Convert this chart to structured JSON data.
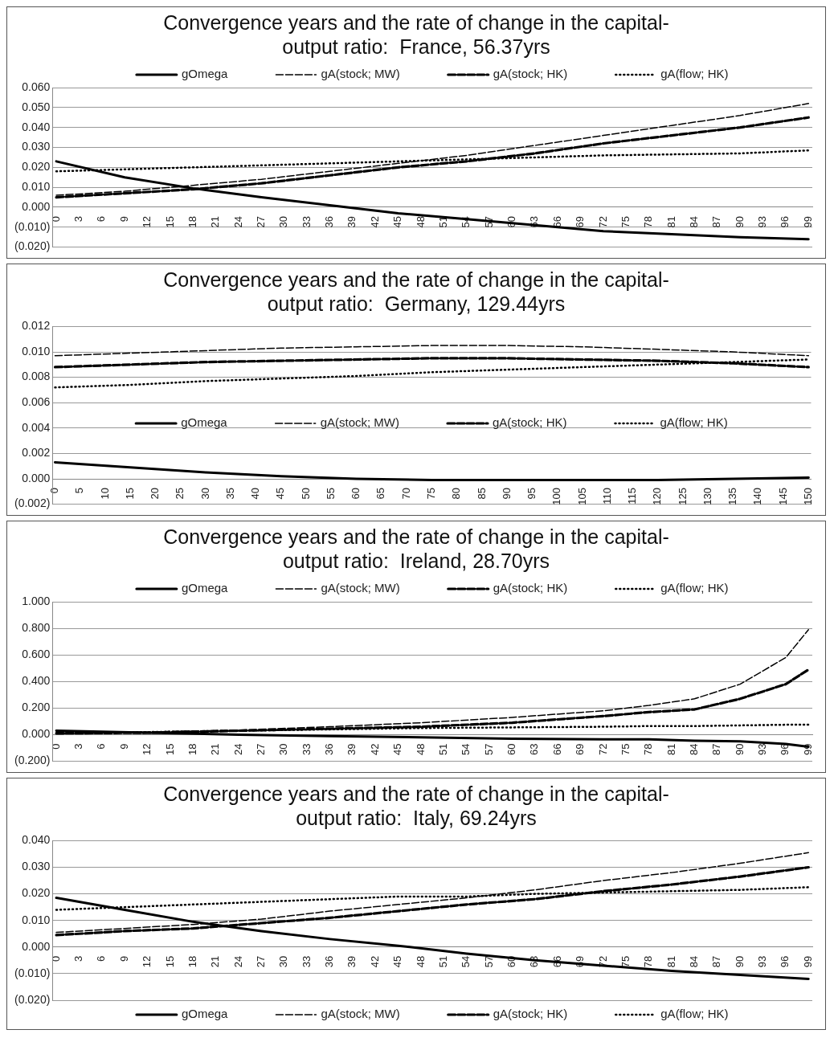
{
  "chart_data": [
    {
      "type": "line",
      "title": "Convergence years and the rate of change in the capital-output ratio:  France, 56.37yrs",
      "xlim": [
        -0.5,
        99.5
      ],
      "xticks": [
        0,
        3,
        6,
        9,
        12,
        15,
        18,
        21,
        24,
        27,
        30,
        33,
        36,
        39,
        42,
        45,
        48,
        51,
        54,
        57,
        60,
        63,
        66,
        69,
        72,
        75,
        78,
        81,
        84,
        87,
        90,
        93,
        96,
        99
      ],
      "ylim": [
        -0.02,
        0.06
      ],
      "yticks": [
        {
          "value": -0.02,
          "label": "(0.020)"
        },
        {
          "value": -0.01,
          "label": "(0.010)"
        },
        {
          "value": 0,
          "label": "0.000"
        },
        {
          "value": 0.01,
          "label": "0.010"
        },
        {
          "value": 0.02,
          "label": "0.020"
        },
        {
          "value": 0.03,
          "label": "0.030"
        },
        {
          "value": 0.04,
          "label": "0.040"
        },
        {
          "value": 0.05,
          "label": "0.050"
        },
        {
          "value": 0.06,
          "label": "0.060"
        }
      ],
      "grid": "y",
      "legend": "top",
      "series": [
        {
          "name": "gOmega",
          "color": "#000000",
          "line_style": "solid",
          "x": [
            0,
            9,
            18,
            27,
            36,
            45,
            54,
            63,
            72,
            81,
            90,
            99
          ],
          "values": [
            0.023,
            0.015,
            0.0095,
            0.005,
            0.001,
            -0.003,
            -0.006,
            -0.009,
            -0.012,
            -0.0135,
            -0.015,
            -0.016
          ]
        },
        {
          "name": "gA(stock; MW)",
          "color": "#000000",
          "line_style": "dashed",
          "x": [
            0,
            9,
            18,
            27,
            36,
            45,
            54,
            63,
            72,
            81,
            90,
            99
          ],
          "values": [
            0.006,
            0.008,
            0.011,
            0.014,
            0.018,
            0.022,
            0.026,
            0.031,
            0.036,
            0.041,
            0.046,
            0.052
          ]
        },
        {
          "name": "gA(stock; HK)",
          "color": "#000000",
          "line_style": "dashed",
          "x": [
            0,
            9,
            18,
            27,
            36,
            45,
            54,
            63,
            72,
            81,
            90,
            99
          ],
          "values": [
            0.005,
            0.007,
            0.009,
            0.012,
            0.016,
            0.02,
            0.023,
            0.027,
            0.032,
            0.036,
            0.04,
            0.045
          ]
        },
        {
          "name": "gA(flow; HK)",
          "color": "#000000",
          "line_style": "dotted",
          "x": [
            0,
            9,
            18,
            27,
            36,
            45,
            54,
            63,
            72,
            81,
            90,
            99
          ],
          "values": [
            0.018,
            0.019,
            0.02,
            0.021,
            0.022,
            0.023,
            0.024,
            0.025,
            0.026,
            0.0265,
            0.027,
            0.0285
          ]
        }
      ]
    },
    {
      "type": "line",
      "title": "Convergence years and the rate of change in the capital-output ratio:  Germany, 129.44yrs",
      "xlim": [
        -0.5,
        150.5
      ],
      "xticks": [
        0,
        5,
        10,
        15,
        20,
        25,
        30,
        35,
        40,
        45,
        50,
        55,
        60,
        65,
        70,
        75,
        80,
        85,
        90,
        95,
        100,
        105,
        110,
        115,
        120,
        125,
        130,
        135,
        140,
        145,
        150
      ],
      "ylim": [
        -0.002,
        0.012
      ],
      "yticks": [
        {
          "value": -0.002,
          "label": "(0.002)"
        },
        {
          "value": 0,
          "label": "0.000"
        },
        {
          "value": 0.002,
          "label": "0.002"
        },
        {
          "value": 0.004,
          "label": "0.004"
        },
        {
          "value": 0.006,
          "label": "0.006"
        },
        {
          "value": 0.008,
          "label": "0.008"
        },
        {
          "value": 0.01,
          "label": "0.010"
        },
        {
          "value": 0.012,
          "label": "0.012"
        }
      ],
      "grid": "y",
      "legend": "center",
      "series": [
        {
          "name": "gOmega",
          "color": "#000000",
          "line_style": "solid",
          "x": [
            0,
            15,
            30,
            45,
            60,
            75,
            90,
            105,
            120,
            135,
            150
          ],
          "values": [
            0.0013,
            0.0009,
            0.0005,
            0.0002,
            0,
            -0.0001,
            -0.0001,
            -0.0001,
            -0.0001,
            0,
            0.0001
          ]
        },
        {
          "name": "gA(stock; MW)",
          "color": "#000000",
          "line_style": "dashed",
          "x": [
            0,
            15,
            30,
            45,
            60,
            75,
            90,
            105,
            120,
            135,
            150
          ],
          "values": [
            0.0097,
            0.0099,
            0.0101,
            0.0103,
            0.0104,
            0.0105,
            0.0105,
            0.0104,
            0.0102,
            0.01,
            0.0097
          ]
        },
        {
          "name": "gA(stock; HK)",
          "color": "#000000",
          "line_style": "dashed",
          "x": [
            0,
            15,
            30,
            45,
            60,
            75,
            90,
            105,
            120,
            135,
            150
          ],
          "values": [
            0.0088,
            0.009,
            0.0092,
            0.0093,
            0.0094,
            0.0095,
            0.0095,
            0.0094,
            0.0093,
            0.0091,
            0.0088
          ]
        },
        {
          "name": "gA(flow; HK)",
          "color": "#000000",
          "line_style": "dotted",
          "x": [
            0,
            15,
            30,
            45,
            60,
            75,
            90,
            105,
            120,
            135,
            150
          ],
          "values": [
            0.0072,
            0.0074,
            0.0077,
            0.0079,
            0.0081,
            0.0084,
            0.0086,
            0.0088,
            0.009,
            0.0092,
            0.0094
          ]
        }
      ]
    },
    {
      "type": "line",
      "title": "Convergence years and the rate of change in the capital-output ratio:  Ireland, 28.70yrs",
      "xlim": [
        -0.5,
        99.5
      ],
      "xticks": [
        0,
        3,
        6,
        9,
        12,
        15,
        18,
        21,
        24,
        27,
        30,
        33,
        36,
        39,
        42,
        45,
        48,
        51,
        54,
        57,
        60,
        63,
        66,
        69,
        72,
        75,
        78,
        81,
        84,
        87,
        90,
        93,
        96,
        99
      ],
      "ylim": [
        -0.2,
        1
      ],
      "yticks": [
        {
          "value": -0.2,
          "label": "(0.200)"
        },
        {
          "value": 0,
          "label": "0.000"
        },
        {
          "value": 0.2,
          "label": "0.200"
        },
        {
          "value": 0.4,
          "label": "0.400"
        },
        {
          "value": 0.6,
          "label": "0.600"
        },
        {
          "value": 0.8,
          "label": "0.800"
        },
        {
          "value": 1,
          "label": "1.000"
        }
      ],
      "grid": "y",
      "legend": "top",
      "series": [
        {
          "name": "gOmega",
          "color": "#000000",
          "line_style": "solid",
          "x": [
            0,
            12,
            24,
            36,
            48,
            60,
            72,
            78,
            84,
            90,
            96,
            99
          ],
          "values": [
            0.03,
            0.015,
            0,
            -0.01,
            -0.02,
            -0.03,
            -0.035,
            -0.035,
            -0.045,
            -0.05,
            -0.07,
            -0.09
          ]
        },
        {
          "name": "gA(stock; MW)",
          "color": "#000000",
          "line_style": "dashed",
          "x": [
            0,
            12,
            24,
            36,
            48,
            60,
            72,
            78,
            84,
            90,
            96,
            99
          ],
          "values": [
            0.02,
            0.02,
            0.035,
            0.06,
            0.09,
            0.13,
            0.18,
            0.22,
            0.27,
            0.38,
            0.58,
            0.79
          ]
        },
        {
          "name": "gA(stock; HK)",
          "color": "#000000",
          "line_style": "dashed",
          "x": [
            0,
            12,
            24,
            36,
            48,
            60,
            72,
            78,
            84,
            90,
            96,
            99
          ],
          "values": [
            0.01,
            0.015,
            0.03,
            0.045,
            0.06,
            0.09,
            0.14,
            0.17,
            0.19,
            0.27,
            0.38,
            0.49
          ]
        },
        {
          "name": "gA(flow; HK)",
          "color": "#000000",
          "line_style": "dotted",
          "x": [
            0,
            12,
            24,
            36,
            48,
            60,
            72,
            78,
            84,
            90,
            96,
            99
          ],
          "values": [
            0.01,
            0.02,
            0.03,
            0.04,
            0.05,
            0.055,
            0.06,
            0.065,
            0.065,
            0.07,
            0.075,
            0.075
          ]
        }
      ]
    },
    {
      "type": "line",
      "title": "Convergence years and the rate of change in the capital-output ratio:  Italy, 69.24yrs",
      "xlim": [
        -0.5,
        99.5
      ],
      "xticks": [
        0,
        3,
        6,
        9,
        12,
        15,
        18,
        21,
        24,
        27,
        30,
        33,
        36,
        39,
        42,
        45,
        48,
        51,
        54,
        57,
        60,
        63,
        66,
        69,
        72,
        75,
        78,
        81,
        84,
        87,
        90,
        93,
        96,
        99
      ],
      "ylim": [
        -0.02,
        0.04
      ],
      "yticks": [
        {
          "value": -0.02,
          "label": "(0.020)"
        },
        {
          "value": -0.01,
          "label": "(0.010)"
        },
        {
          "value": 0,
          "label": "0.000"
        },
        {
          "value": 0.01,
          "label": "0.010"
        },
        {
          "value": 0.02,
          "label": "0.020"
        },
        {
          "value": 0.03,
          "label": "0.030"
        },
        {
          "value": 0.04,
          "label": "0.040"
        }
      ],
      "grid": "y",
      "legend": "bottom",
      "series": [
        {
          "name": "gOmega",
          "color": "#000000",
          "line_style": "solid",
          "x": [
            0,
            9,
            18,
            27,
            36,
            45,
            54,
            63,
            72,
            81,
            90,
            99
          ],
          "values": [
            0.0185,
            0.014,
            0.0095,
            0.006,
            0.003,
            0.0005,
            -0.0025,
            -0.005,
            -0.007,
            -0.009,
            -0.0105,
            -0.012
          ]
        },
        {
          "name": "gA(stock; MW)",
          "color": "#000000",
          "line_style": "dashed",
          "x": [
            0,
            9,
            18,
            27,
            36,
            45,
            54,
            63,
            72,
            81,
            90,
            99
          ],
          "values": [
            0.0055,
            0.007,
            0.0085,
            0.0105,
            0.0135,
            0.016,
            0.0185,
            0.0215,
            0.025,
            0.028,
            0.0315,
            0.0355
          ]
        },
        {
          "name": "gA(stock; HK)",
          "color": "#000000",
          "line_style": "dashed",
          "x": [
            0,
            9,
            18,
            27,
            36,
            45,
            54,
            63,
            72,
            81,
            90,
            99
          ],
          "values": [
            0.0045,
            0.006,
            0.007,
            0.009,
            0.011,
            0.0135,
            0.016,
            0.018,
            0.021,
            0.0235,
            0.0265,
            0.03
          ]
        },
        {
          "name": "gA(flow; HK)",
          "color": "#000000",
          "line_style": "dotted",
          "x": [
            0,
            9,
            18,
            27,
            36,
            45,
            54,
            63,
            72,
            81,
            90,
            99
          ],
          "values": [
            0.014,
            0.015,
            0.016,
            0.017,
            0.018,
            0.019,
            0.019,
            0.02,
            0.0205,
            0.021,
            0.0215,
            0.0225
          ]
        }
      ]
    }
  ]
}
